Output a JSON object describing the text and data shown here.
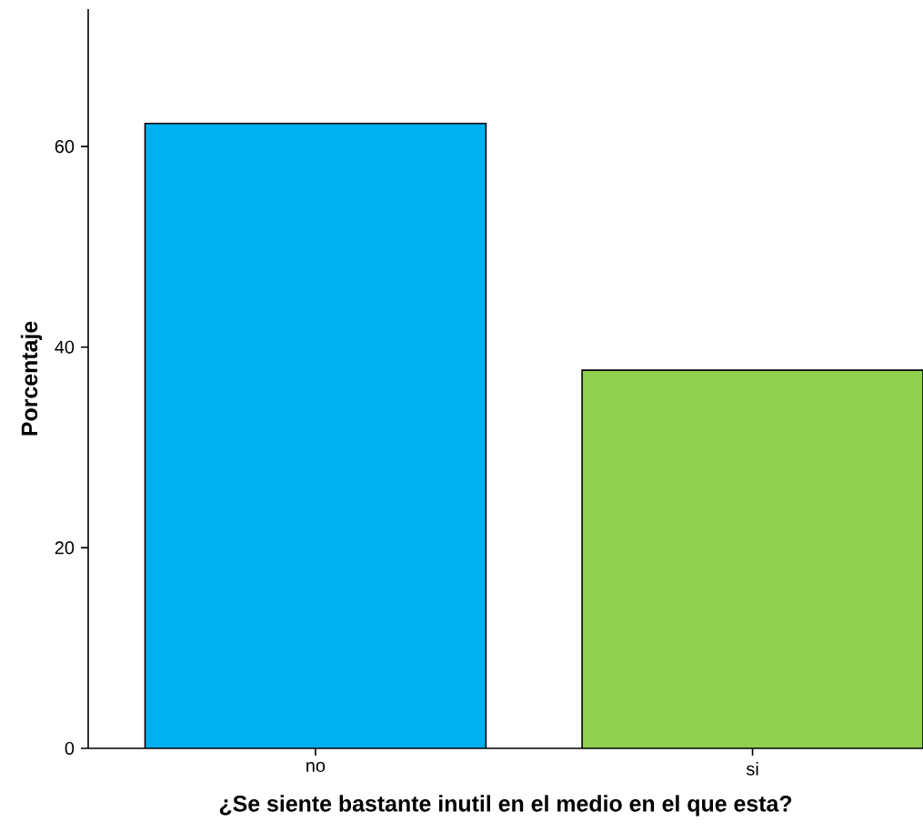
{
  "chart_data": {
    "type": "bar",
    "xlabel": "¿Se siente bastante inutil en el medio en el que esta?",
    "ylabel": "Porcentaje",
    "categories": [
      "no",
      "si"
    ],
    "values": [
      62.3,
      37.7
    ],
    "colors": [
      "#00b0f0",
      "#92d050"
    ],
    "ylim": [
      0,
      73.7
    ],
    "yticks": [
      0,
      20,
      40,
      60
    ]
  }
}
